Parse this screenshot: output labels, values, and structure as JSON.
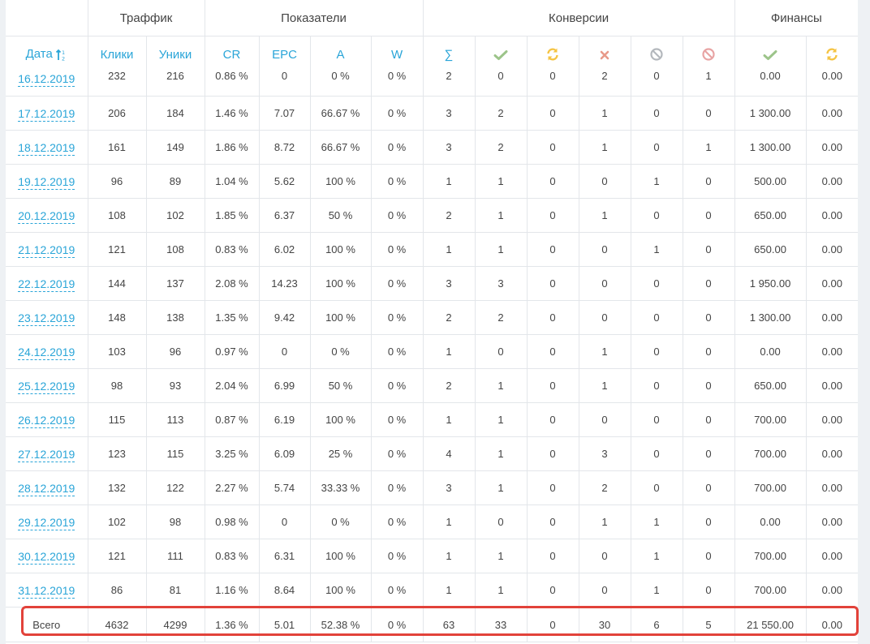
{
  "groups": {
    "traffic": "Траффик",
    "indicators": "Показатели",
    "conversions": "Конверсии",
    "finance": "Финансы"
  },
  "columns": {
    "date": "Дата",
    "clicks": "Клики",
    "uniques": "Уники",
    "cr": "CR",
    "epc": "EPC",
    "a": "A",
    "w": "W",
    "sum": "∑"
  },
  "icons": {
    "approved": "check-icon",
    "pending": "refresh-icon",
    "rejected": "cross-icon",
    "trash": "ban-icon",
    "hold": "ban-icon",
    "finance_approved": "check-icon",
    "finance_pending": "refresh-icon"
  },
  "colors": {
    "accent": "#2aa5d8",
    "approved": "#9cc48a",
    "pending": "#f5c443",
    "rejected": "#e89a8a",
    "trash": "#b4b8bd",
    "hold": "#e8a4a4",
    "highlight": "#e2423a"
  },
  "rows": [
    [
      "16.12.2019",
      "232",
      "216",
      "0.86 %",
      "0",
      "0 %",
      "0 %",
      "2",
      "0",
      "0",
      "2",
      "0",
      "1",
      "0.00",
      "0.00"
    ],
    [
      "17.12.2019",
      "206",
      "184",
      "1.46 %",
      "7.07",
      "66.67 %",
      "0 %",
      "3",
      "2",
      "0",
      "1",
      "0",
      "0",
      "1 300.00",
      "0.00"
    ],
    [
      "18.12.2019",
      "161",
      "149",
      "1.86 %",
      "8.72",
      "66.67 %",
      "0 %",
      "3",
      "2",
      "0",
      "1",
      "0",
      "1",
      "1 300.00",
      "0.00"
    ],
    [
      "19.12.2019",
      "96",
      "89",
      "1.04 %",
      "5.62",
      "100 %",
      "0 %",
      "1",
      "1",
      "0",
      "0",
      "1",
      "0",
      "500.00",
      "0.00"
    ],
    [
      "20.12.2019",
      "108",
      "102",
      "1.85 %",
      "6.37",
      "50 %",
      "0 %",
      "2",
      "1",
      "0",
      "1",
      "0",
      "0",
      "650.00",
      "0.00"
    ],
    [
      "21.12.2019",
      "121",
      "108",
      "0.83 %",
      "6.02",
      "100 %",
      "0 %",
      "1",
      "1",
      "0",
      "0",
      "1",
      "0",
      "650.00",
      "0.00"
    ],
    [
      "22.12.2019",
      "144",
      "137",
      "2.08 %",
      "14.23",
      "100 %",
      "0 %",
      "3",
      "3",
      "0",
      "0",
      "0",
      "0",
      "1 950.00",
      "0.00"
    ],
    [
      "23.12.2019",
      "148",
      "138",
      "1.35 %",
      "9.42",
      "100 %",
      "0 %",
      "2",
      "2",
      "0",
      "0",
      "0",
      "0",
      "1 300.00",
      "0.00"
    ],
    [
      "24.12.2019",
      "103",
      "96",
      "0.97 %",
      "0",
      "0 %",
      "0 %",
      "1",
      "0",
      "0",
      "1",
      "0",
      "0",
      "0.00",
      "0.00"
    ],
    [
      "25.12.2019",
      "98",
      "93",
      "2.04 %",
      "6.99",
      "50 %",
      "0 %",
      "2",
      "1",
      "0",
      "1",
      "0",
      "0",
      "650.00",
      "0.00"
    ],
    [
      "26.12.2019",
      "115",
      "113",
      "0.87 %",
      "6.19",
      "100 %",
      "0 %",
      "1",
      "1",
      "0",
      "0",
      "0",
      "0",
      "700.00",
      "0.00"
    ],
    [
      "27.12.2019",
      "123",
      "115",
      "3.25 %",
      "6.09",
      "25 %",
      "0 %",
      "4",
      "1",
      "0",
      "3",
      "0",
      "0",
      "700.00",
      "0.00"
    ],
    [
      "28.12.2019",
      "132",
      "122",
      "2.27 %",
      "5.74",
      "33.33 %",
      "0 %",
      "3",
      "1",
      "0",
      "2",
      "0",
      "0",
      "700.00",
      "0.00"
    ],
    [
      "29.12.2019",
      "102",
      "98",
      "0.98 %",
      "0",
      "0 %",
      "0 %",
      "1",
      "0",
      "0",
      "1",
      "1",
      "0",
      "0.00",
      "0.00"
    ],
    [
      "30.12.2019",
      "121",
      "111",
      "0.83 %",
      "6.31",
      "100 %",
      "0 %",
      "1",
      "1",
      "0",
      "0",
      "1",
      "0",
      "700.00",
      "0.00"
    ],
    [
      "31.12.2019",
      "86",
      "81",
      "1.16 %",
      "8.64",
      "100 %",
      "0 %",
      "1",
      "1",
      "0",
      "0",
      "1",
      "0",
      "700.00",
      "0.00"
    ]
  ],
  "total": [
    "Всего",
    "4632",
    "4299",
    "1.36 %",
    "5.01",
    "52.38 %",
    "0 %",
    "63",
    "33",
    "0",
    "30",
    "6",
    "5",
    "21 550.00",
    "0.00"
  ]
}
